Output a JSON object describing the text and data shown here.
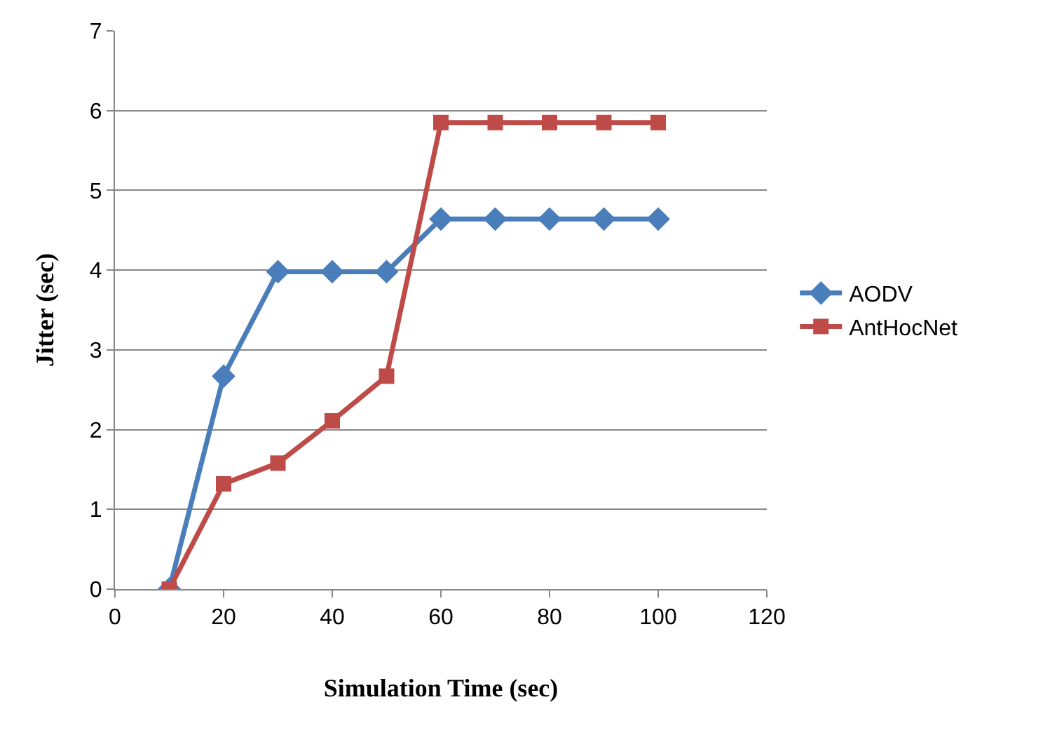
{
  "chart_data": {
    "type": "line",
    "xlabel": "Simulation Time (sec)",
    "ylabel": "Jitter (sec)",
    "x": [
      10,
      20,
      30,
      40,
      50,
      60,
      70,
      80,
      90,
      100
    ],
    "series": [
      {
        "name": "AODV",
        "color": "#4a7ebb",
        "marker": "diamond",
        "values": [
          0,
          2.67,
          3.98,
          3.98,
          3.98,
          4.64,
          4.64,
          4.64,
          4.64,
          4.64
        ]
      },
      {
        "name": "AntHocNet",
        "color": "#be4b48",
        "marker": "square",
        "values": [
          0,
          1.32,
          1.58,
          2.11,
          2.67,
          5.85,
          5.85,
          5.85,
          5.85,
          5.85
        ]
      }
    ],
    "xlim": [
      0,
      120
    ],
    "xticks": [
      0,
      20,
      40,
      60,
      80,
      100,
      120
    ],
    "ylim": [
      0,
      7
    ],
    "yticks": [
      0,
      1,
      2,
      3,
      4,
      5,
      6,
      7
    ],
    "grid": "y",
    "legend": "right",
    "line_style": "solid"
  }
}
